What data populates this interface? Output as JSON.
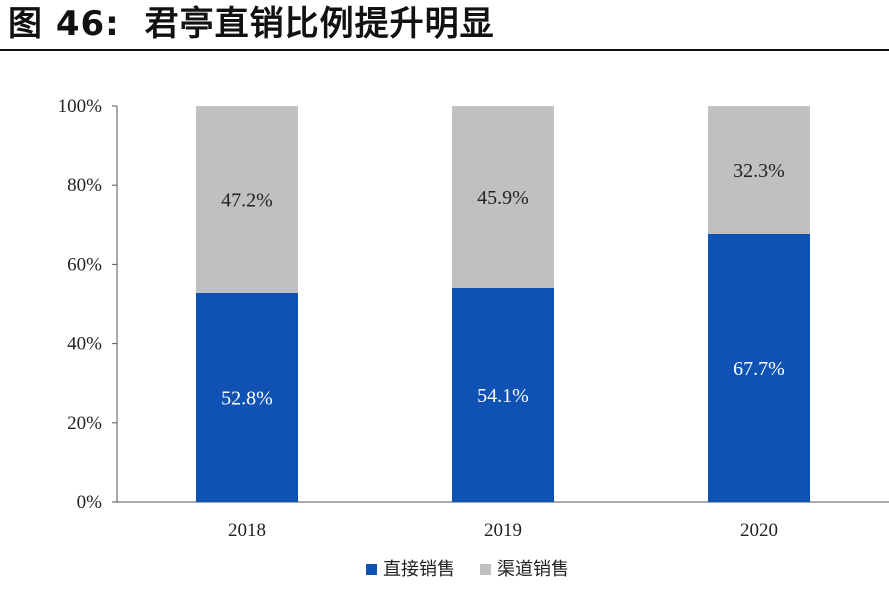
{
  "figure": {
    "label": "图",
    "number": "46:",
    "caption": "君亭直销比例提升明显"
  },
  "chart_data": {
    "type": "bar",
    "stacked": true,
    "categories": [
      "2018",
      "2019",
      "2020"
    ],
    "series": [
      {
        "name": "直接销售",
        "values": [
          52.8,
          54.1,
          67.7
        ],
        "labels": [
          "52.8%",
          "54.1%",
          "67.7%"
        ],
        "color": "#0f52b4",
        "label_color": "#ffffff"
      },
      {
        "name": "渠道销售",
        "values": [
          47.2,
          45.9,
          32.3
        ],
        "labels": [
          "47.2%",
          "45.9%",
          "32.3%"
        ],
        "color": "#c0c0c0",
        "label_color": "#222222"
      }
    ],
    "ylim": [
      0,
      100
    ],
    "yticks": [
      {
        "value": 0,
        "label": "0%"
      },
      {
        "value": 20,
        "label": "20%"
      },
      {
        "value": 40,
        "label": "40%"
      },
      {
        "value": 60,
        "label": "60%"
      },
      {
        "value": 80,
        "label": "80%"
      },
      {
        "value": 100,
        "label": "100%"
      }
    ],
    "grid": false,
    "legend_position": "bottom-center"
  }
}
